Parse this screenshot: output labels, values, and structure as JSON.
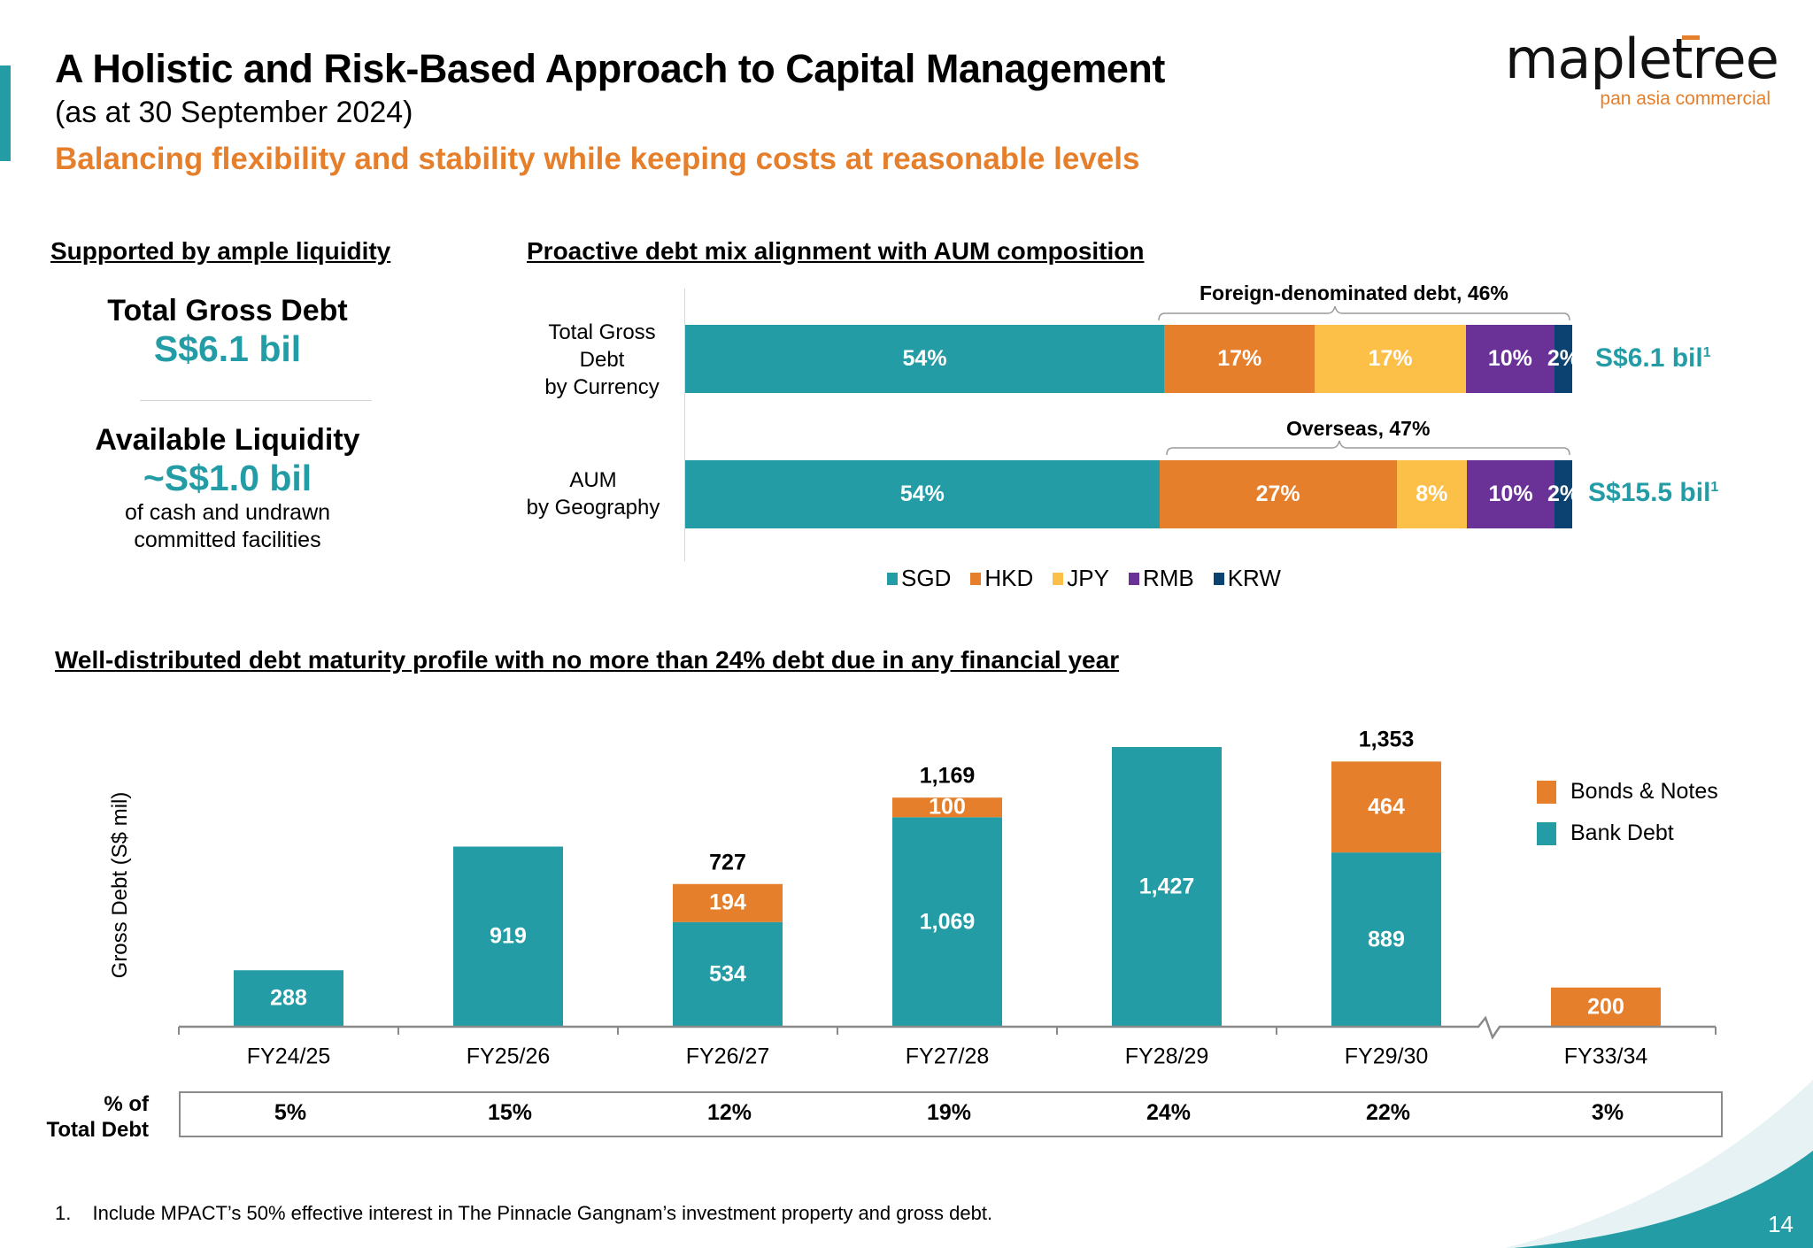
{
  "header": {
    "title": "A Holistic and Risk-Based Approach to Capital Management",
    "subtitle": "(as at 30 September 2024)",
    "tagline": "Balancing flexibility and stability while keeping costs at reasonable levels"
  },
  "logo": {
    "name": "mapletree",
    "sub": "pan asia commercial"
  },
  "colors": {
    "teal": "#239ca5",
    "orange": "#e57f2b",
    "yellow": "#fcbf47",
    "purple": "#6a3197",
    "navy": "#0c4271"
  },
  "liquidity": {
    "heading": "Supported by ample liquidity",
    "gross_debt_label": "Total Gross Debt",
    "gross_debt_value": "S$6.1 bil",
    "available_label": "Available Liquidity",
    "available_value": "~S$1.0 bil",
    "available_note_1": "of cash and undrawn",
    "available_note_2": "committed facilities"
  },
  "debt_mix": {
    "heading": "Proactive debt mix alignment with AUM composition",
    "row1_label_1": "Total Gross",
    "row1_label_2": "Debt",
    "row1_label_3": "by Currency",
    "row2_label_1": "AUM",
    "row2_label_2": "by Geography",
    "row1_brace": "Foreign-denominated debt, 46%",
    "row2_brace": "Overseas, 47%",
    "row1_total": "S$6.1 bil",
    "row2_total": "S$15.5 bil",
    "footnote_ref": "1"
  },
  "maturity": {
    "heading": "Well-distributed debt maturity profile with no more than 24% debt due in any financial year",
    "pct_row_label_1": "% of",
    "pct_row_label_2": "Total Debt",
    "pct_of_total": [
      "5%",
      "15%",
      "12%",
      "19%",
      "24%",
      "22%",
      "3%"
    ]
  },
  "chart_data": [
    {
      "type": "bar",
      "orientation": "horizontal",
      "stacked": "100%",
      "title": "Proactive debt mix alignment with AUM composition",
      "categories": [
        "Total Gross Debt by Currency",
        "AUM by Geography"
      ],
      "series": [
        {
          "name": "SGD",
          "values": [
            54,
            54
          ]
        },
        {
          "name": "HKD",
          "values": [
            17,
            27
          ]
        },
        {
          "name": "JPY",
          "values": [
            17,
            8
          ]
        },
        {
          "name": "RMB",
          "values": [
            10,
            10
          ]
        },
        {
          "name": "KRW",
          "values": [
            2,
            2
          ]
        }
      ],
      "data_labels": [
        [
          "54%",
          "17%",
          "17%",
          "10%",
          "2%"
        ],
        [
          "54%",
          "27%",
          "8%",
          "10%",
          "2%"
        ]
      ],
      "totals": [
        "S$6.1 bil¹",
        "S$15.5 bil¹"
      ],
      "annotations": [
        "Foreign-denominated debt, 46%",
        "Overseas, 47%"
      ],
      "legend": [
        "SGD",
        "HKD",
        "JPY",
        "RMB",
        "KRW"
      ],
      "legend_position": "bottom",
      "unit": "%"
    },
    {
      "type": "bar",
      "stacked": true,
      "title": "Well-distributed debt maturity profile with no more than 24% debt due in any financial year",
      "categories": [
        "FY24/25",
        "FY25/26",
        "FY26/27",
        "FY27/28",
        "FY28/29",
        "FY29/30",
        "FY33/34"
      ],
      "series": [
        {
          "name": "Bank Debt",
          "values": [
            288,
            919,
            534,
            1069,
            1427,
            889,
            0
          ]
        },
        {
          "name": "Bonds & Notes",
          "values": [
            0,
            0,
            194,
            100,
            0,
            464,
            200
          ]
        }
      ],
      "totals": [
        288,
        919,
        727,
        1169,
        1427,
        1353,
        200
      ],
      "total_labels": [
        null,
        null,
        "727",
        "1,169",
        null,
        "1,353",
        null
      ],
      "segment_labels": {
        "Bank Debt": [
          "288",
          "919",
          "534",
          "1,069",
          "1,427",
          "889",
          null
        ],
        "Bonds & Notes": [
          null,
          null,
          "194",
          "100",
          null,
          "464",
          "200"
        ]
      },
      "xlabel": "",
      "ylabel": "Gross Debt (S$ mil)",
      "ylim": [
        0,
        1427
      ],
      "axis_break_between": [
        "FY29/30",
        "FY33/34"
      ],
      "legend": [
        "Bonds & Notes",
        "Bank Debt"
      ],
      "legend_position": "right",
      "grid": false
    }
  ],
  "footnote": {
    "number": "1.",
    "text": "Include MPACT’s 50% effective interest in The Pinnacle Gangnam’s investment property and gross debt."
  },
  "page_number": "14"
}
